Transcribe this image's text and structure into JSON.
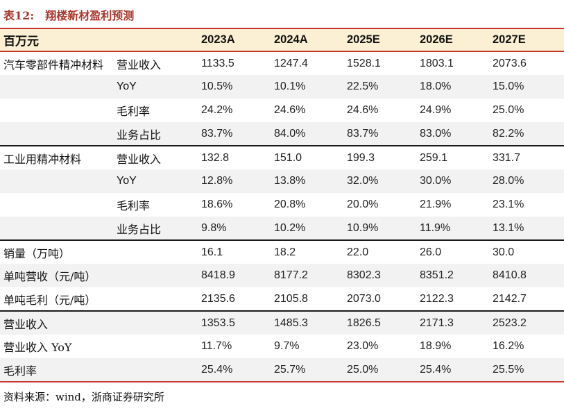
{
  "title": {
    "prefix": "表12:",
    "text": "翔楼新材盈利预测"
  },
  "table": {
    "unit_label": "百万元",
    "columns": [
      "2023A",
      "2024A",
      "2025E",
      "2026E",
      "2027E"
    ],
    "rows": [
      {
        "label": "汽车零部件精冲材料",
        "sublabel": "营业收入",
        "values": [
          "1133.5",
          "1247.4",
          "1528.1",
          "1803.1",
          "2073.6"
        ],
        "separator_above": false
      },
      {
        "label": "",
        "sublabel": "YoY",
        "values": [
          "10.5%",
          "10.1%",
          "22.5%",
          "18.0%",
          "15.0%"
        ],
        "separator_above": false
      },
      {
        "label": "",
        "sublabel": "毛利率",
        "values": [
          "24.2%",
          "24.6%",
          "24.6%",
          "24.9%",
          "25.0%"
        ],
        "separator_above": false
      },
      {
        "label": "",
        "sublabel": "业务占比",
        "values": [
          "83.7%",
          "84.0%",
          "83.7%",
          "83.0%",
          "82.2%"
        ],
        "separator_above": false
      },
      {
        "label": "工业用精冲材料",
        "sublabel": "营业收入",
        "values": [
          "132.8",
          "151.0",
          "199.3",
          "259.1",
          "331.7"
        ],
        "separator_above": true
      },
      {
        "label": "",
        "sublabel": "YoY",
        "values": [
          "12.8%",
          "13.8%",
          "32.0%",
          "30.0%",
          "28.0%"
        ],
        "separator_above": false
      },
      {
        "label": "",
        "sublabel": "毛利率",
        "values": [
          "18.6%",
          "20.8%",
          "20.0%",
          "21.9%",
          "23.1%"
        ],
        "separator_above": false
      },
      {
        "label": "",
        "sublabel": "业务占比",
        "values": [
          "9.8%",
          "10.2%",
          "10.9%",
          "11.9%",
          "13.1%"
        ],
        "separator_above": false
      },
      {
        "label": "销量（万吨）",
        "sublabel": "",
        "values": [
          "16.1",
          "18.2",
          "22.0",
          "26.0",
          "30.0"
        ],
        "separator_above": true
      },
      {
        "label": "单吨营收（元/吨）",
        "sublabel": "",
        "values": [
          "8418.9",
          "8177.2",
          "8302.3",
          "8351.2",
          "8410.8"
        ],
        "separator_above": false
      },
      {
        "label": "单吨毛利（元/吨）",
        "sublabel": "",
        "values": [
          "2135.6",
          "2105.8",
          "2073.0",
          "2122.3",
          "2142.7"
        ],
        "separator_above": false
      },
      {
        "label": "营业收入",
        "sublabel": "",
        "values": [
          "1353.5",
          "1485.3",
          "1826.5",
          "2171.3",
          "2523.2"
        ],
        "separator_above": true
      },
      {
        "label": "营业收入 YoY",
        "sublabel": "",
        "values": [
          "11.7%",
          "9.7%",
          "23.0%",
          "18.9%",
          "16.2%"
        ],
        "separator_above": false
      },
      {
        "label": "毛利率",
        "sublabel": "",
        "values": [
          "25.4%",
          "25.7%",
          "25.0%",
          "25.4%",
          "25.5%"
        ],
        "separator_above": false
      }
    ]
  },
  "footer": {
    "source": "资料来源：wind，浙商证券研究所"
  },
  "colors": {
    "accent_red_line": "#c5342b",
    "title_red": "#a8382e",
    "header_bg": "#fbf0d3",
    "row_alt_bg": "#f2f2f2",
    "section_line": "#1a1a1a"
  }
}
